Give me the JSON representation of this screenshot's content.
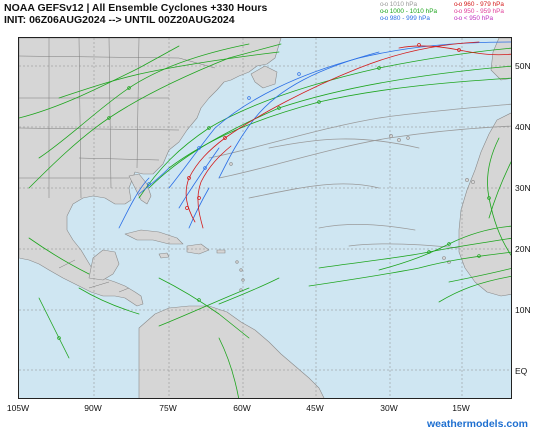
{
  "title_line1": "NOAA GEFSv12 | All Ensemble Cyclones +330 Hours",
  "title_line2": "INIT: 06Z06AUG2024 --> UNTIL 00Z20AUG2024",
  "legend": [
    {
      "label": "1010 hPa",
      "color": "#9a9a9a"
    },
    {
      "label": "1000 - 1010 hPa",
      "color": "#1ea51e"
    },
    {
      "label": "980 - 999 hPa",
      "color": "#2b6fe6"
    },
    {
      "label": "960 - 979 hPa",
      "color": "#d41b1b"
    },
    {
      "label": "950 - 959 hPa",
      "color": "#e0409a"
    },
    {
      "label": "< 950 hPa",
      "color": "#c033c0"
    }
  ],
  "latitude_labels": [
    "50N",
    "40N",
    "30N",
    "20N",
    "10N",
    "EQ"
  ],
  "longitude_labels": [
    "105W",
    "90W",
    "75W",
    "60W",
    "45W",
    "30W",
    "15W"
  ],
  "credit": "weathermodels.com",
  "colors": {
    "ocean": "#cfe6f2",
    "land": "#d6d6d6",
    "grid": "#8a8a8a"
  }
}
